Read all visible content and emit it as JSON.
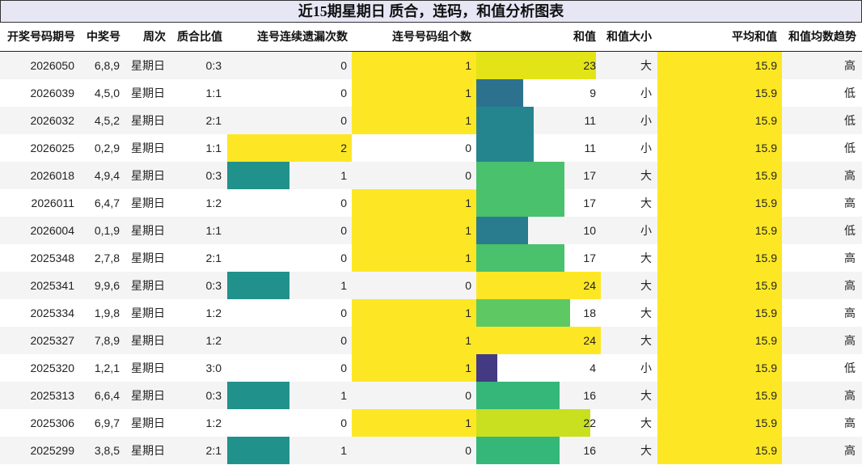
{
  "title": "近15期星期日 质合，连码，和值分析图表",
  "colors": {
    "title_bg": "#e6e6f5",
    "yellow": "#fde725",
    "teal": "#21918c",
    "avg_bar": "#fde725"
  },
  "headers": {
    "issue": "开奖号码期号",
    "numbers": "中奖号",
    "weekday": "周次",
    "ratio": "质合比值",
    "consec_miss": "连号连续遗漏次数",
    "consec_groups": "连号号码组个数",
    "sum": "和值",
    "sum_size": "和值大小",
    "avg_sum": "平均和值",
    "trend": "和值均数趋势"
  },
  "rows": [
    {
      "issue": "2026050",
      "numbers": "6,8,9",
      "weekday": "星期日",
      "ratio": "0:3",
      "consec_miss": "0",
      "consec_groups": "1",
      "sum": "23",
      "sum_size": "大",
      "avg_sum": "15.9",
      "trend": "高",
      "sum_color": "#e2e418"
    },
    {
      "issue": "2026039",
      "numbers": "4,5,0",
      "weekday": "星期日",
      "ratio": "1:1",
      "consec_miss": "0",
      "consec_groups": "1",
      "sum": "9",
      "sum_size": "小",
      "avg_sum": "15.9",
      "trend": "低",
      "sum_color": "#2c728e"
    },
    {
      "issue": "2026032",
      "numbers": "4,5,2",
      "weekday": "星期日",
      "ratio": "2:1",
      "consec_miss": "0",
      "consec_groups": "1",
      "sum": "11",
      "sum_size": "小",
      "avg_sum": "15.9",
      "trend": "低",
      "sum_color": "#25858e"
    },
    {
      "issue": "2026025",
      "numbers": "0,2,9",
      "weekday": "星期日",
      "ratio": "1:1",
      "consec_miss": "2",
      "consec_groups": "0",
      "sum": "11",
      "sum_size": "小",
      "avg_sum": "15.9",
      "trend": "低",
      "sum_color": "#25858e"
    },
    {
      "issue": "2026018",
      "numbers": "4,9,4",
      "weekday": "星期日",
      "ratio": "0:3",
      "consec_miss": "1",
      "consec_groups": "0",
      "sum": "17",
      "sum_size": "大",
      "avg_sum": "15.9",
      "trend": "高",
      "sum_color": "#4ac16d"
    },
    {
      "issue": "2026011",
      "numbers": "6,4,7",
      "weekday": "星期日",
      "ratio": "1:2",
      "consec_miss": "0",
      "consec_groups": "1",
      "sum": "17",
      "sum_size": "大",
      "avg_sum": "15.9",
      "trend": "高",
      "sum_color": "#4ac16d"
    },
    {
      "issue": "2026004",
      "numbers": "0,1,9",
      "weekday": "星期日",
      "ratio": "1:1",
      "consec_miss": "0",
      "consec_groups": "1",
      "sum": "10",
      "sum_size": "小",
      "avg_sum": "15.9",
      "trend": "低",
      "sum_color": "#297b8e"
    },
    {
      "issue": "2025348",
      "numbers": "2,7,8",
      "weekday": "星期日",
      "ratio": "2:1",
      "consec_miss": "0",
      "consec_groups": "1",
      "sum": "17",
      "sum_size": "大",
      "avg_sum": "15.9",
      "trend": "高",
      "sum_color": "#4ac16d"
    },
    {
      "issue": "2025341",
      "numbers": "9,9,6",
      "weekday": "星期日",
      "ratio": "0:3",
      "consec_miss": "1",
      "consec_groups": "0",
      "sum": "24",
      "sum_size": "大",
      "avg_sum": "15.9",
      "trend": "高",
      "sum_color": "#fde725"
    },
    {
      "issue": "2025334",
      "numbers": "1,9,8",
      "weekday": "星期日",
      "ratio": "1:2",
      "consec_miss": "0",
      "consec_groups": "1",
      "sum": "18",
      "sum_size": "大",
      "avg_sum": "15.9",
      "trend": "高",
      "sum_color": "#5ec962"
    },
    {
      "issue": "2025327",
      "numbers": "7,8,9",
      "weekday": "星期日",
      "ratio": "1:2",
      "consec_miss": "0",
      "consec_groups": "1",
      "sum": "24",
      "sum_size": "大",
      "avg_sum": "15.9",
      "trend": "高",
      "sum_color": "#fde725"
    },
    {
      "issue": "2025320",
      "numbers": "1,2,1",
      "weekday": "星期日",
      "ratio": "3:0",
      "consec_miss": "0",
      "consec_groups": "1",
      "sum": "4",
      "sum_size": "小",
      "avg_sum": "15.9",
      "trend": "低",
      "sum_color": "#443983"
    },
    {
      "issue": "2025313",
      "numbers": "6,6,4",
      "weekday": "星期日",
      "ratio": "0:3",
      "consec_miss": "1",
      "consec_groups": "0",
      "sum": "16",
      "sum_size": "大",
      "avg_sum": "15.9",
      "trend": "高",
      "sum_color": "#35b779"
    },
    {
      "issue": "2025306",
      "numbers": "6,9,7",
      "weekday": "星期日",
      "ratio": "1:2",
      "consec_miss": "0",
      "consec_groups": "1",
      "sum": "22",
      "sum_size": "大",
      "avg_sum": "15.9",
      "trend": "高",
      "sum_color": "#c8e020"
    },
    {
      "issue": "2025299",
      "numbers": "3,8,5",
      "weekday": "星期日",
      "ratio": "2:1",
      "consec_miss": "1",
      "consec_groups": "0",
      "sum": "16",
      "sum_size": "大",
      "avg_sum": "15.9",
      "trend": "高",
      "sum_color": "#35b779"
    }
  ],
  "chart_data": {
    "type": "table",
    "title": "近15期星期日 质合，连码，和值分析图表",
    "columns": [
      "开奖号码期号",
      "中奖号",
      "周次",
      "质合比值",
      "连号连续遗漏次数",
      "连号号码组个数",
      "和值",
      "和值大小",
      "平均和值",
      "和值均数趋势"
    ],
    "categories": [
      "2026050",
      "2026039",
      "2026032",
      "2026025",
      "2026018",
      "2026011",
      "2026004",
      "2025348",
      "2025341",
      "2025334",
      "2025327",
      "2025320",
      "2025313",
      "2025306",
      "2025299"
    ],
    "series": [
      {
        "name": "连号连续遗漏次数",
        "values": [
          0,
          0,
          0,
          2,
          1,
          0,
          0,
          0,
          1,
          0,
          0,
          0,
          1,
          0,
          1
        ]
      },
      {
        "name": "连号号码组个数",
        "values": [
          1,
          1,
          1,
          0,
          0,
          1,
          1,
          1,
          0,
          1,
          1,
          1,
          0,
          1,
          0
        ]
      },
      {
        "name": "和值",
        "values": [
          23,
          9,
          11,
          11,
          17,
          17,
          10,
          17,
          24,
          18,
          24,
          4,
          16,
          22,
          16
        ]
      },
      {
        "name": "平均和值",
        "values": [
          15.9,
          15.9,
          15.9,
          15.9,
          15.9,
          15.9,
          15.9,
          15.9,
          15.9,
          15.9,
          15.9,
          15.9,
          15.9,
          15.9,
          15.9
        ]
      }
    ],
    "text_columns": {
      "中奖号": [
        "6,8,9",
        "4,5,0",
        "4,5,2",
        "0,2,9",
        "4,9,4",
        "6,4,7",
        "0,1,9",
        "2,7,8",
        "9,9,6",
        "1,9,8",
        "7,8,9",
        "1,2,1",
        "6,6,4",
        "6,9,7",
        "3,8,5"
      ],
      "周次": "星期日",
      "质合比值": [
        "0:3",
        "1:1",
        "2:1",
        "1:1",
        "0:3",
        "1:2",
        "1:1",
        "2:1",
        "0:3",
        "1:2",
        "1:2",
        "3:0",
        "0:3",
        "1:2",
        "2:1"
      ],
      "和值大小": [
        "大",
        "小",
        "小",
        "小",
        "大",
        "大",
        "小",
        "大",
        "大",
        "大",
        "大",
        "小",
        "大",
        "大",
        "大"
      ],
      "和值均数趋势": [
        "高",
        "低",
        "低",
        "低",
        "高",
        "高",
        "低",
        "高",
        "高",
        "高",
        "高",
        "低",
        "高",
        "高",
        "高"
      ]
    }
  }
}
